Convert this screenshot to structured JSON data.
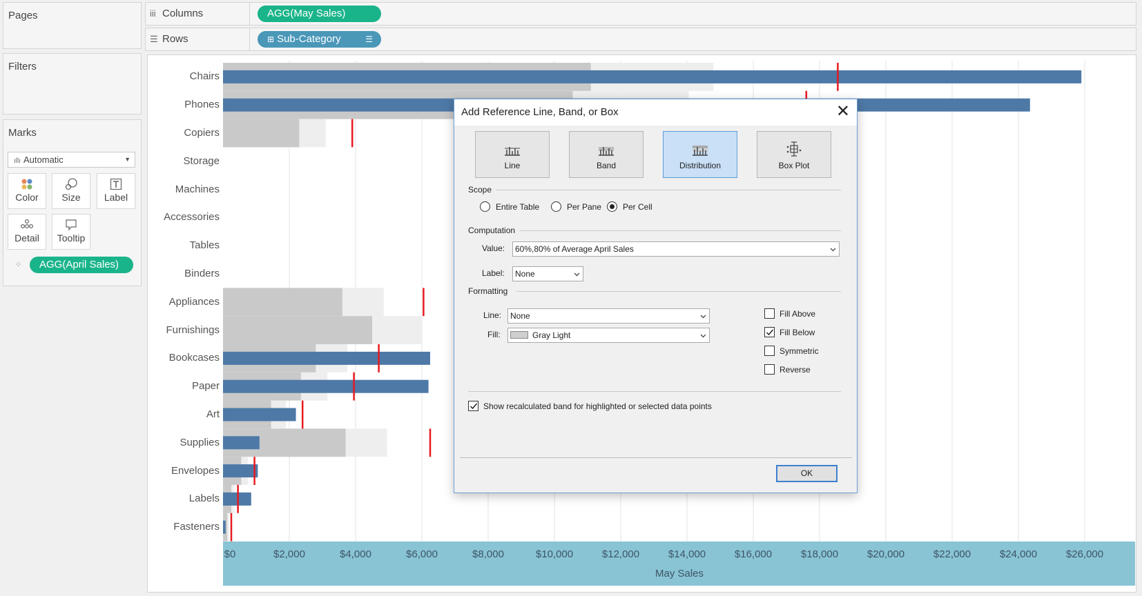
{
  "left_panel": {
    "pages_title": "Pages",
    "filters_title": "Filters",
    "marks_title": "Marks",
    "marks_type": "Automatic",
    "buttons": [
      {
        "label": "Color",
        "icon": "color-dots-icon"
      },
      {
        "label": "Size",
        "icon": "size-circles-icon"
      },
      {
        "label": "Label",
        "icon": "label-t-icon"
      },
      {
        "label": "Detail",
        "icon": "detail-dots-icon"
      },
      {
        "label": "Tooltip",
        "icon": "tooltip-bubble-icon"
      }
    ],
    "detail_pill": "AGG(April Sales)"
  },
  "shelves": {
    "columns_label": "Columns",
    "columns_pill": "AGG(May Sales)",
    "rows_label": "Rows",
    "rows_pill": "Sub-Category"
  },
  "chart_data": {
    "type": "bar",
    "categories": [
      "Chairs",
      "Phones",
      "Copiers",
      "Storage",
      "Machines",
      "Accessories",
      "Tables",
      "Binders",
      "Appliances",
      "Furnishings",
      "Bookcases",
      "Paper",
      "Art",
      "Supplies",
      "Envelopes",
      "Labels",
      "Fasteners"
    ],
    "series": [
      {
        "name": "AGG(May Sales)",
        "values": [
          25900,
          24350,
          0,
          0,
          0,
          0,
          0,
          0,
          0,
          0,
          6250,
          6200,
          2200,
          1100,
          1050,
          850,
          80
        ]
      }
    ],
    "reference_lines": {
      "name": "AGG(April Sales)",
      "values": [
        18550,
        17600,
        3900,
        null,
        null,
        null,
        null,
        null,
        6050,
        null,
        4700,
        3950,
        2400,
        6250,
        950,
        450,
        250
      ]
    },
    "bands": {
      "description": "60%,80% of Average April Sales",
      "band60": [
        11100,
        10550,
        2300,
        null,
        null,
        null,
        null,
        null,
        3600,
        4500,
        2800,
        2350,
        1450,
        3700,
        550,
        250,
        130
      ],
      "band80": [
        14800,
        14050,
        3100,
        null,
        null,
        null,
        null,
        null,
        4850,
        6000,
        3750,
        3150,
        1900,
        4950,
        750,
        350,
        180
      ]
    },
    "xlim": [
      0,
      27000
    ],
    "xticks": [
      "$0",
      "$2,000",
      "$4,000",
      "$6,000",
      "$8,000",
      "$10,000",
      "$12,000",
      "$14,000",
      "$16,000",
      "$18,000",
      "$20,000",
      "$22,000",
      "$24,000",
      "$26,000"
    ],
    "xlabel": "May Sales",
    "colors": {
      "bar": "#4e79a7",
      "reference": "#e8191f",
      "band_dark": "#c9c9c9",
      "band_light": "#eeeeee",
      "axis_band": "#89c4d4"
    }
  },
  "dialog": {
    "title": "Add Reference Line, Band, or Box",
    "types": [
      {
        "label": "Line",
        "selected": false
      },
      {
        "label": "Band",
        "selected": false
      },
      {
        "label": "Distribution",
        "selected": true
      },
      {
        "label": "Box Plot",
        "selected": false
      }
    ],
    "scope_title": "Scope",
    "scope_options": [
      "Entire Table",
      "Per Pane",
      "Per Cell"
    ],
    "scope_selected": "Per Cell",
    "computation_title": "Computation",
    "value_label": "Value:",
    "value": "60%,80% of Average April Sales",
    "label_label": "Label:",
    "label_value": "None",
    "formatting_title": "Formatting",
    "line_label": "Line:",
    "line_value": "None",
    "fill_label": "Fill:",
    "fill_value": "Gray Light",
    "fill_options": [
      {
        "label": "Fill Above",
        "checked": false
      },
      {
        "label": "Fill Below",
        "checked": true
      },
      {
        "label": "Symmetric",
        "checked": false
      },
      {
        "label": "Reverse",
        "checked": false
      }
    ],
    "recalc_label": "Show recalculated band for highlighted or selected data points",
    "recalc_checked": true,
    "ok_label": "OK"
  }
}
